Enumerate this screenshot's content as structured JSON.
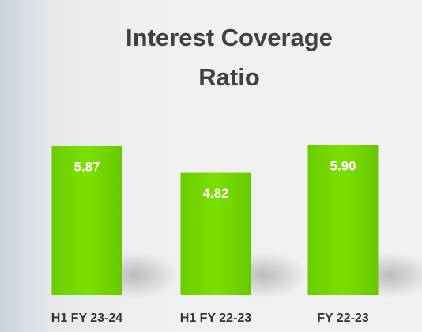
{
  "chart_data": {
    "type": "bar",
    "title": "Interest Coverage Ratio",
    "categories": [
      "H1 FY 23-24",
      "H1 FY 22-23",
      "FY 22-23"
    ],
    "values": [
      5.87,
      4.82,
      5.9
    ],
    "value_labels": [
      "5.87",
      "4.82",
      "5.90"
    ],
    "color": "#76d600"
  }
}
